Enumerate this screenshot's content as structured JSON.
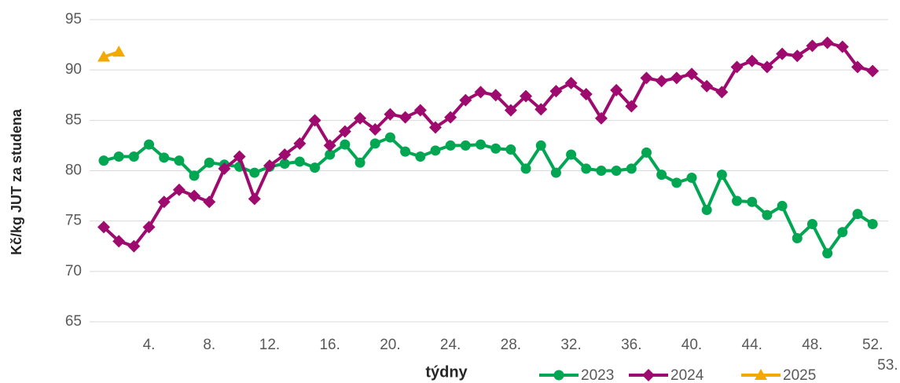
{
  "chart_data": {
    "type": "line",
    "x_label": "týdny",
    "y_label": "Kč/kg JUT za studena",
    "categories": [
      null,
      null,
      null,
      "4.",
      null,
      null,
      null,
      "8.",
      null,
      null,
      null,
      "12.",
      null,
      null,
      null,
      "16.",
      null,
      null,
      null,
      "20.",
      null,
      null,
      null,
      "24.",
      null,
      null,
      null,
      "28.",
      null,
      null,
      null,
      "32.",
      null,
      null,
      null,
      "36.",
      null,
      null,
      null,
      "40.",
      null,
      null,
      null,
      "44.",
      null,
      null,
      null,
      "48.",
      null,
      null,
      null,
      "52.",
      "53."
    ],
    "series": [
      {
        "name": "2023",
        "color": "#00a651",
        "marker": "circle",
        "values": [
          81.0,
          81.4,
          81.4,
          82.6,
          81.3,
          81.0,
          79.5,
          80.8,
          80.6,
          80.4,
          79.8,
          80.4,
          80.7,
          80.9,
          80.3,
          81.6,
          82.6,
          80.8,
          82.7,
          83.3,
          81.9,
          81.4,
          82.0,
          82.5,
          82.5,
          82.6,
          82.2,
          82.1,
          80.2,
          82.5,
          79.8,
          81.6,
          80.2,
          80.0,
          80.0,
          80.2,
          81.8,
          79.6,
          78.8,
          79.3,
          76.1,
          79.6,
          77.0,
          76.9,
          75.6,
          76.5,
          73.3,
          74.7,
          71.8,
          73.9,
          75.7,
          74.7,
          null
        ]
      },
      {
        "name": "2024",
        "color": "#9e0a6e",
        "marker": "diamond",
        "values": [
          74.4,
          73.0,
          72.5,
          74.4,
          76.9,
          78.1,
          77.5,
          76.9,
          80.2,
          81.4,
          77.2,
          80.5,
          81.6,
          82.7,
          85.0,
          82.5,
          83.9,
          85.2,
          84.1,
          85.6,
          85.3,
          86.0,
          84.3,
          85.3,
          87.0,
          87.8,
          87.5,
          86.0,
          87.4,
          86.1,
          87.9,
          88.7,
          87.6,
          85.2,
          88.0,
          86.4,
          89.2,
          88.9,
          89.2,
          89.6,
          88.4,
          87.8,
          90.3,
          90.9,
          90.3,
          91.6,
          91.4,
          92.4,
          92.7,
          92.3,
          90.3,
          89.9,
          null
        ]
      },
      {
        "name": "2025",
        "color": "#f2a900",
        "marker": "triangle",
        "values": [
          91.3,
          91.8,
          null,
          null,
          null,
          null,
          null,
          null,
          null,
          null,
          null,
          null,
          null,
          null,
          null,
          null,
          null,
          null,
          null,
          null,
          null,
          null,
          null,
          null,
          null,
          null,
          null,
          null,
          null,
          null,
          null,
          null,
          null,
          null,
          null,
          null,
          null,
          null,
          null,
          null,
          null,
          null,
          null,
          null,
          null,
          null,
          null,
          null,
          null,
          null,
          null,
          null,
          null
        ]
      }
    ],
    "ylim": [
      65,
      95
    ],
    "yticks": [
      65,
      70,
      75,
      80,
      85,
      90,
      95
    ],
    "grid": true,
    "legend": "bottom"
  }
}
